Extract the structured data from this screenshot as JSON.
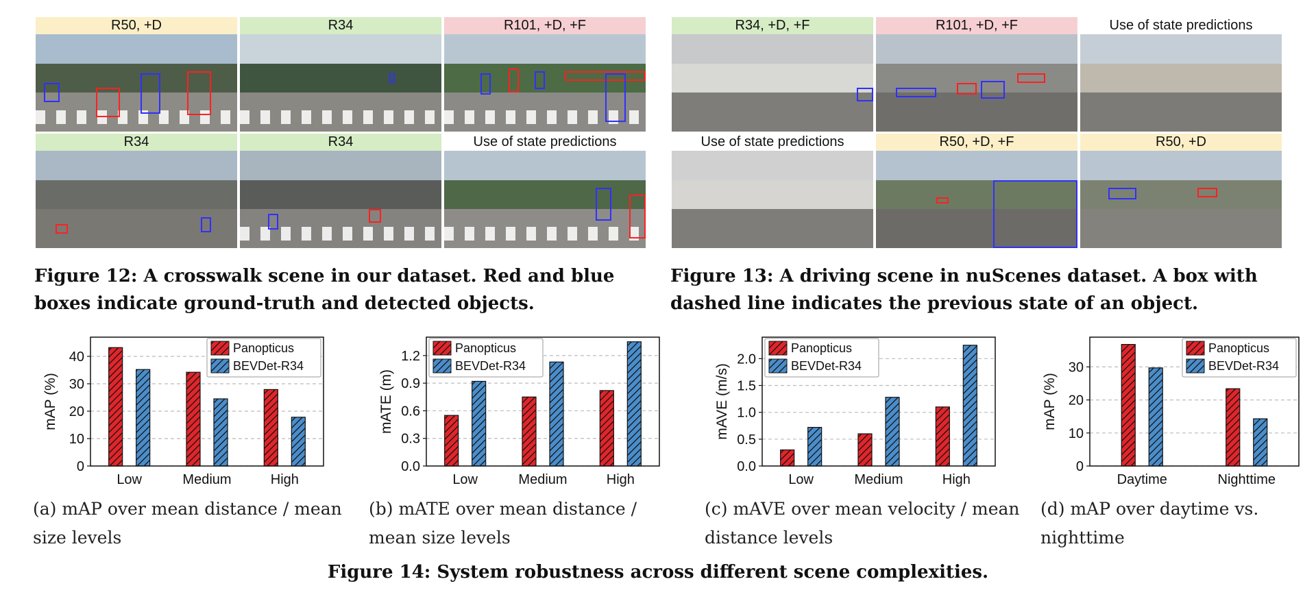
{
  "fig12": {
    "panels": [
      {
        "tag": "R50, +D",
        "tag_color": "#fcefc7"
      },
      {
        "tag": "R34",
        "tag_color": "#d5ecc4"
      },
      {
        "tag": "R101, +D, +F",
        "tag_color": "#f6cfd2"
      },
      {
        "tag": "R34",
        "tag_color": "#d5ecc4"
      },
      {
        "tag": "R34",
        "tag_color": "#d5ecc4"
      },
      {
        "tag": "Use of state predictions",
        "tag_color": "#ffffff"
      }
    ],
    "caption": "Figure 12: A crosswalk scene in our dataset. Red and blue boxes indicate ground-truth and detected objects."
  },
  "fig13": {
    "panels": [
      {
        "tag": "R34, +D, +F",
        "tag_color": "#d5ecc4"
      },
      {
        "tag": "R101, +D, +F",
        "tag_color": "#f6cfd2"
      },
      {
        "tag": "Use of state predictions",
        "tag_color": "#ffffff"
      },
      {
        "tag": "Use of state predictions",
        "tag_color": "#ffffff"
      },
      {
        "tag": "R50, +D, +F",
        "tag_color": "#fcefc7"
      },
      {
        "tag": "R50, +D",
        "tag_color": "#fcefc7"
      }
    ],
    "caption": "Figure 13: A driving scene in nuScenes dataset. A box with dashed line indicates the previous state of an object."
  },
  "colors": {
    "panopticus": "#e0262b",
    "bevdet": "#4a8dca",
    "gt_box": "#ff2020",
    "det_box": "#3030ff"
  },
  "chart_data": [
    {
      "type": "bar",
      "ylabel": "mAP (%)",
      "categories": [
        "Low",
        "Medium",
        "High"
      ],
      "series": [
        {
          "name": "Panopticus",
          "values": [
            43.2,
            34.2,
            27.9
          ]
        },
        {
          "name": "BEVDet-R34",
          "values": [
            35.2,
            24.5,
            17.8
          ]
        }
      ],
      "ylim": [
        0,
        47
      ],
      "yticks": [
        "0",
        "10",
        "20",
        "30",
        "40"
      ],
      "ytick_values": [
        0,
        10,
        20,
        30,
        40
      ],
      "legend": "top-right",
      "caption": "(a) mAP over mean distance / mean size levels"
    },
    {
      "type": "bar",
      "ylabel": "mATE (m)",
      "categories": [
        "Low",
        "Medium",
        "High"
      ],
      "series": [
        {
          "name": "Panopticus",
          "values": [
            0.55,
            0.75,
            0.82
          ]
        },
        {
          "name": "BEVDet-R34",
          "values": [
            0.92,
            1.13,
            1.35
          ]
        }
      ],
      "ylim": [
        0,
        1.4
      ],
      "yticks": [
        "0.0",
        "0.3",
        "0.6",
        "0.9",
        "1.2"
      ],
      "ytick_values": [
        0,
        0.3,
        0.6,
        0.9,
        1.2
      ],
      "legend": "top-left",
      "caption": "(b) mATE over mean distance / mean size levels"
    },
    {
      "type": "bar",
      "ylabel": "mAVE (m/s)",
      "categories": [
        "Low",
        "Medium",
        "High"
      ],
      "series": [
        {
          "name": "Panopticus",
          "values": [
            0.3,
            0.6,
            1.1
          ]
        },
        {
          "name": "BEVDet-R34",
          "values": [
            0.72,
            1.28,
            2.25
          ]
        }
      ],
      "ylim": [
        0,
        2.4
      ],
      "yticks": [
        "0.0",
        "0.5",
        "1.0",
        "1.5",
        "2.0"
      ],
      "ytick_values": [
        0,
        0.5,
        1.0,
        1.5,
        2.0
      ],
      "legend": "top-left",
      "caption": "(c) mAVE over mean velocity / mean distance levels"
    },
    {
      "type": "bar",
      "ylabel": "mAP (%)",
      "categories": [
        "Daytime",
        "Nighttime"
      ],
      "series": [
        {
          "name": "Panopticus",
          "values": [
            36.8,
            23.4
          ]
        },
        {
          "name": "BEVDet-R34",
          "values": [
            29.7,
            14.3
          ]
        }
      ],
      "ylim": [
        0,
        39
      ],
      "yticks": [
        "0",
        "10",
        "20",
        "30"
      ],
      "ytick_values": [
        0,
        10,
        20,
        30
      ],
      "legend": "top-right",
      "caption": "(d) mAP over daytime vs. nighttime"
    }
  ],
  "fig14_caption": "Figure 14: System robustness across different scene complexities."
}
